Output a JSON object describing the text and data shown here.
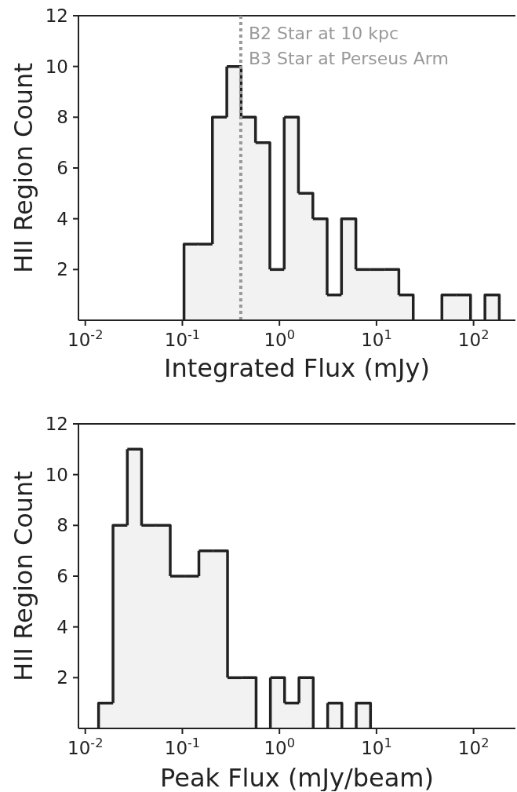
{
  "chart_data": [
    {
      "type": "histogram",
      "xlabel": "Integrated Flux (mJy)",
      "ylabel": "HII Region Count",
      "color": "#222222",
      "log": "x",
      "bins": [
        0.104,
        0.145,
        0.204,
        0.287,
        0.403,
        0.567,
        0.797,
        1.12,
        1.57,
        2.21,
        3.1,
        4.36,
        6.13,
        8.61,
        12.1,
        17.0,
        23.9,
        47.2,
        66.3,
        93.1,
        131,
        184
      ],
      "values": [
        3,
        3,
        8,
        10,
        8,
        7,
        2,
        8,
        5,
        4,
        1,
        4,
        2,
        2,
        2,
        1,
        0,
        1,
        1,
        0,
        1
      ],
      "xlim": [
        0.0085,
        270
      ],
      "xticks": [
        {
          "value": 0.01,
          "label": "10$^{-2}$"
        },
        {
          "value": 0.1,
          "label": "10$^{-1}$"
        },
        {
          "value": 1,
          "label": "10$^{0}$"
        },
        {
          "value": 10,
          "label": "10$^{1}$"
        },
        {
          "value": 100,
          "label": "10$^{2}$"
        }
      ],
      "ylim": [
        0,
        12
      ],
      "yticks": [
        2,
        4,
        6,
        8,
        10,
        12
      ],
      "ref_lines": [
        {
          "axis": "x",
          "value": 0.4,
          "label": "B2 Star at 10 kpc\nB3 Star at Perseus Arm",
          "color": "#999999",
          "line_style": "dotted"
        }
      ]
    },
    {
      "type": "histogram",
      "xlabel": "Peak Flux (mJy/beam)",
      "ylabel": "HII Region Count",
      "color": "#222222",
      "log": "x",
      "bins": [
        0.0137,
        0.0193,
        0.0271,
        0.038,
        0.0534,
        0.075,
        0.105,
        0.148,
        0.208,
        0.292,
        0.409,
        0.575,
        0.807,
        1.13,
        1.59,
        2.23,
        3.14,
        4.4,
        6.18,
        8.68
      ],
      "values": [
        1,
        8,
        11,
        8,
        8,
        6,
        6,
        7,
        7,
        2,
        2,
        0,
        2,
        1,
        2,
        0,
        1,
        0,
        1
      ],
      "xlim": [
        0.0085,
        270
      ],
      "xticks": [
        {
          "value": 0.01,
          "label": "10$^{-2}$"
        },
        {
          "value": 0.1,
          "label": "10$^{-1}$"
        },
        {
          "value": 1,
          "label": "10$^{0}$"
        },
        {
          "value": 10,
          "label": "10$^{1}$"
        },
        {
          "value": 100,
          "label": "10$^{2}$"
        }
      ],
      "ylim": [
        0,
        12
      ],
      "yticks": [
        2,
        4,
        6,
        8,
        10,
        12
      ]
    }
  ]
}
